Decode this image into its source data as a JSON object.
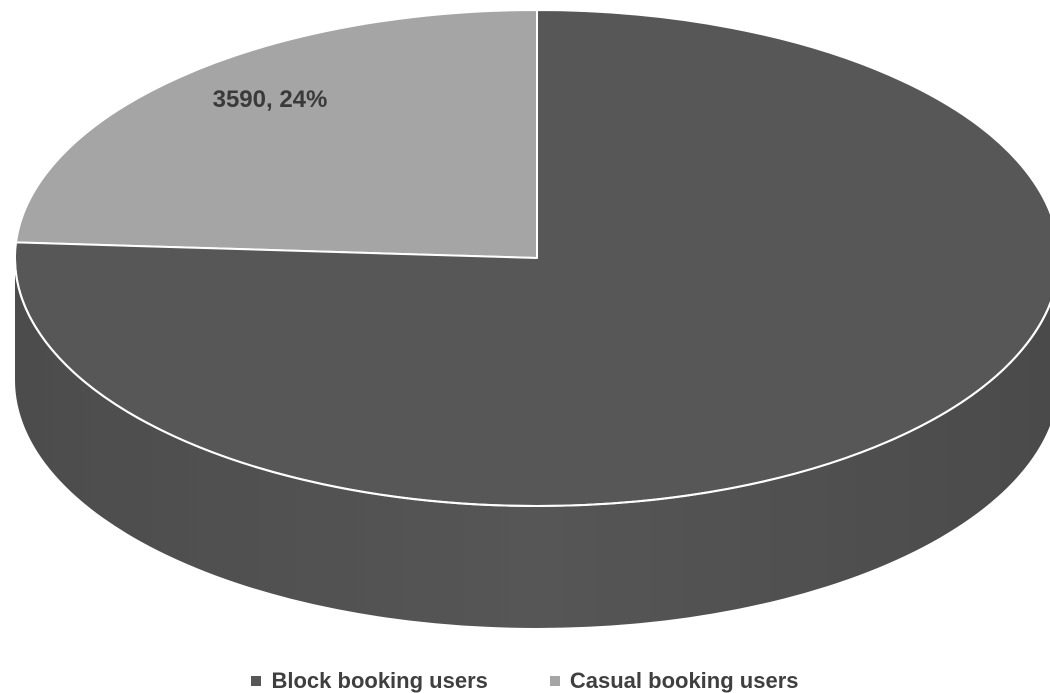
{
  "chart_data": {
    "type": "pie",
    "style": "3d",
    "title": "",
    "series": [
      {
        "values": [
          11370,
          3590
        ],
        "percentages": [
          76,
          24
        ]
      }
    ],
    "categories": [
      "Block booking users",
      "Casual booking users"
    ],
    "colors": [
      "#575757",
      "#a5a5a5"
    ],
    "legend": {
      "position": "bottom",
      "items": [
        {
          "label": "Block booking users",
          "color": "#575757"
        },
        {
          "label": "Casual booking users",
          "color": "#a5a5a5"
        }
      ]
    },
    "data_labels": [
      {
        "category": "Casual booking users",
        "text": "3590, 24%"
      }
    ]
  }
}
